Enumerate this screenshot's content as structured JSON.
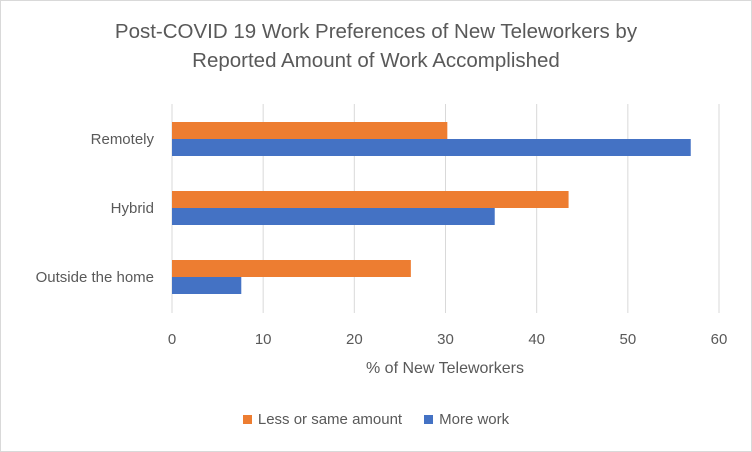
{
  "chart_data": {
    "type": "bar",
    "orientation": "horizontal",
    "title_lines": [
      "Post-COVID 19 Work Preferences of New Teleworkers by",
      "Reported Amount of Work Accomplished"
    ],
    "xlabel": "% of New Teleworkers",
    "ylabel": "",
    "categories": [
      "Remotely",
      "Hybrid",
      "Outside the home"
    ],
    "series": [
      {
        "name": "Less or same amount",
        "color": "#ed7d31",
        "values": [
          30.2,
          43.5,
          26.2
        ]
      },
      {
        "name": "More work",
        "color": "#4472c4",
        "values": [
          56.9,
          35.4,
          7.6
        ]
      }
    ],
    "xlim": [
      0,
      60
    ],
    "xticks": [
      0,
      10,
      20,
      30,
      40,
      50,
      60
    ],
    "grid": true,
    "legend_position": "bottom"
  }
}
